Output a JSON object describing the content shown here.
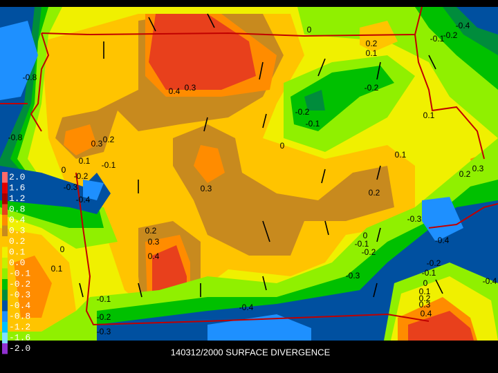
{
  "map": {
    "title": "140312/2000 SURFACE DIVERGENCE",
    "legend": [
      {
        "label": "2.0",
        "color": "#ff6a6a"
      },
      {
        "label": "1.6",
        "color": "#e00000"
      },
      {
        "label": "1.2",
        "color": "#a80000"
      },
      {
        "label": "0.8",
        "color": "#e8401c"
      },
      {
        "label": "0.4",
        "color": "#ff8c00"
      },
      {
        "label": "0.3",
        "color": "#c88a1e"
      },
      {
        "label": "0.2",
        "color": "#ffc400"
      },
      {
        "label": "0.1",
        "color": "#f0f000"
      },
      {
        "label": "0.0",
        "color": "#c8f000"
      },
      {
        "label": "-0.1",
        "color": "#90f000"
      },
      {
        "label": "-0.2",
        "color": "#00c000"
      },
      {
        "label": "-0.3",
        "color": "#008c3c"
      },
      {
        "label": "-0.4",
        "color": "#0050a0"
      },
      {
        "label": "-0.8",
        "color": "#1e90ff"
      },
      {
        "label": "-1.2",
        "color": "#00c0ff"
      },
      {
        "label": "-1.6",
        "color": "#80e0ff"
      },
      {
        "label": "-2.0",
        "color": "#9030d0"
      }
    ],
    "contour_labels": [
      "-0.8",
      "-0.8",
      "0.4",
      "0.3",
      "0.3",
      "0.2",
      "0.1",
      "-0.1",
      "0",
      "-0.2",
      "-0.3",
      "-0.4",
      "0.3",
      "0",
      "0.2",
      "0.1",
      "0.2",
      "0.3",
      "0.4",
      "0",
      "0.1",
      "-0.1",
      "-0.2",
      "-0.3",
      "-0.4",
      "-0.3",
      "-0.2",
      "-0.1",
      "0",
      "-0.3",
      "-0.4",
      "-0.2",
      "-0.1",
      "0",
      "0.1",
      "0.2",
      "0.3",
      "0.4",
      "0.2",
      "0.3",
      "0.2",
      "0.1",
      "-0.2",
      "-0.2",
      "-0.1",
      "0.1",
      "-0.1",
      "-0.2",
      "-0.4",
      "0",
      "-0.4"
    ]
  }
}
